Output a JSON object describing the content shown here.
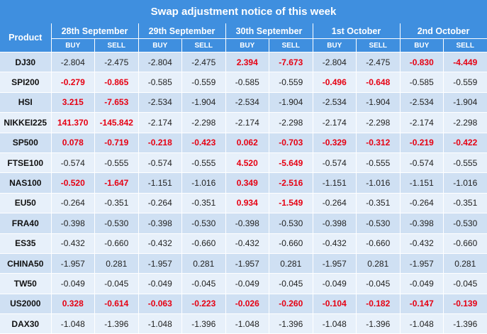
{
  "title": "Swap adjustment notice of this week",
  "header": {
    "product": "Product",
    "dates": [
      "28th  September",
      "29th  September",
      "30th  September",
      "1st  October",
      "2nd  October"
    ],
    "buy": "BUY",
    "sell": "SELL"
  },
  "colors": {
    "header_bg": "#3f8fdf",
    "row_odd": "#cfe0f3",
    "row_even": "#e7f0fa",
    "highlight": "#e60012"
  },
  "rows": [
    {
      "product": "DJ30",
      "cells": [
        {
          "v": "-2.804",
          "hl": false
        },
        {
          "v": "-2.475",
          "hl": false
        },
        {
          "v": "-2.804",
          "hl": false
        },
        {
          "v": "-2.475",
          "hl": false
        },
        {
          "v": "2.394",
          "hl": true
        },
        {
          "v": "-7.673",
          "hl": true
        },
        {
          "v": "-2.804",
          "hl": false
        },
        {
          "v": "-2.475",
          "hl": false
        },
        {
          "v": "-0.830",
          "hl": true
        },
        {
          "v": "-4.449",
          "hl": true
        }
      ]
    },
    {
      "product": "SPI200",
      "cells": [
        {
          "v": "-0.279",
          "hl": true
        },
        {
          "v": "-0.865",
          "hl": true
        },
        {
          "v": "-0.585",
          "hl": false
        },
        {
          "v": "-0.559",
          "hl": false
        },
        {
          "v": "-0.585",
          "hl": false
        },
        {
          "v": "-0.559",
          "hl": false
        },
        {
          "v": "-0.496",
          "hl": true
        },
        {
          "v": "-0.648",
          "hl": true
        },
        {
          "v": "-0.585",
          "hl": false
        },
        {
          "v": "-0.559",
          "hl": false
        }
      ]
    },
    {
      "product": "HSI",
      "cells": [
        {
          "v": "3.215",
          "hl": true
        },
        {
          "v": "-7.653",
          "hl": true
        },
        {
          "v": "-2.534",
          "hl": false
        },
        {
          "v": "-1.904",
          "hl": false
        },
        {
          "v": "-2.534",
          "hl": false
        },
        {
          "v": "-1.904",
          "hl": false
        },
        {
          "v": "-2.534",
          "hl": false
        },
        {
          "v": "-1.904",
          "hl": false
        },
        {
          "v": "-2.534",
          "hl": false
        },
        {
          "v": "-1.904",
          "hl": false
        }
      ]
    },
    {
      "product": "NIKKEI225",
      "cells": [
        {
          "v": "141.370",
          "hl": true
        },
        {
          "v": "-145.842",
          "hl": true
        },
        {
          "v": "-2.174",
          "hl": false
        },
        {
          "v": "-2.298",
          "hl": false
        },
        {
          "v": "-2.174",
          "hl": false
        },
        {
          "v": "-2.298",
          "hl": false
        },
        {
          "v": "-2.174",
          "hl": false
        },
        {
          "v": "-2.298",
          "hl": false
        },
        {
          "v": "-2.174",
          "hl": false
        },
        {
          "v": "-2.298",
          "hl": false
        }
      ]
    },
    {
      "product": "SP500",
      "cells": [
        {
          "v": "0.078",
          "hl": true
        },
        {
          "v": "-0.719",
          "hl": true
        },
        {
          "v": "-0.218",
          "hl": true
        },
        {
          "v": "-0.423",
          "hl": true
        },
        {
          "v": "0.062",
          "hl": true
        },
        {
          "v": "-0.703",
          "hl": true
        },
        {
          "v": "-0.329",
          "hl": true
        },
        {
          "v": "-0.312",
          "hl": true
        },
        {
          "v": "-0.219",
          "hl": true
        },
        {
          "v": "-0.422",
          "hl": true
        }
      ]
    },
    {
      "product": "FTSE100",
      "cells": [
        {
          "v": "-0.574",
          "hl": false
        },
        {
          "v": "-0.555",
          "hl": false
        },
        {
          "v": "-0.574",
          "hl": false
        },
        {
          "v": "-0.555",
          "hl": false
        },
        {
          "v": "4.520",
          "hl": true
        },
        {
          "v": "-5.649",
          "hl": true
        },
        {
          "v": "-0.574",
          "hl": false
        },
        {
          "v": "-0.555",
          "hl": false
        },
        {
          "v": "-0.574",
          "hl": false
        },
        {
          "v": "-0.555",
          "hl": false
        }
      ]
    },
    {
      "product": "NAS100",
      "cells": [
        {
          "v": "-0.520",
          "hl": true
        },
        {
          "v": "-1.647",
          "hl": true
        },
        {
          "v": "-1.151",
          "hl": false
        },
        {
          "v": "-1.016",
          "hl": false
        },
        {
          "v": "0.349",
          "hl": true
        },
        {
          "v": "-2.516",
          "hl": true
        },
        {
          "v": "-1.151",
          "hl": false
        },
        {
          "v": "-1.016",
          "hl": false
        },
        {
          "v": "-1.151",
          "hl": false
        },
        {
          "v": "-1.016",
          "hl": false
        }
      ]
    },
    {
      "product": "EU50",
      "cells": [
        {
          "v": "-0.264",
          "hl": false
        },
        {
          "v": "-0.351",
          "hl": false
        },
        {
          "v": "-0.264",
          "hl": false
        },
        {
          "v": "-0.351",
          "hl": false
        },
        {
          "v": "0.934",
          "hl": true
        },
        {
          "v": "-1.549",
          "hl": true
        },
        {
          "v": "-0.264",
          "hl": false
        },
        {
          "v": "-0.351",
          "hl": false
        },
        {
          "v": "-0.264",
          "hl": false
        },
        {
          "v": "-0.351",
          "hl": false
        }
      ]
    },
    {
      "product": "FRA40",
      "cells": [
        {
          "v": "-0.398",
          "hl": false
        },
        {
          "v": "-0.530",
          "hl": false
        },
        {
          "v": "-0.398",
          "hl": false
        },
        {
          "v": "-0.530",
          "hl": false
        },
        {
          "v": "-0.398",
          "hl": false
        },
        {
          "v": "-0.530",
          "hl": false
        },
        {
          "v": "-0.398",
          "hl": false
        },
        {
          "v": "-0.530",
          "hl": false
        },
        {
          "v": "-0.398",
          "hl": false
        },
        {
          "v": "-0.530",
          "hl": false
        }
      ]
    },
    {
      "product": "ES35",
      "cells": [
        {
          "v": "-0.432",
          "hl": false
        },
        {
          "v": "-0.660",
          "hl": false
        },
        {
          "v": "-0.432",
          "hl": false
        },
        {
          "v": "-0.660",
          "hl": false
        },
        {
          "v": "-0.432",
          "hl": false
        },
        {
          "v": "-0.660",
          "hl": false
        },
        {
          "v": "-0.432",
          "hl": false
        },
        {
          "v": "-0.660",
          "hl": false
        },
        {
          "v": "-0.432",
          "hl": false
        },
        {
          "v": "-0.660",
          "hl": false
        }
      ]
    },
    {
      "product": "CHINA50",
      "cells": [
        {
          "v": "-1.957",
          "hl": false
        },
        {
          "v": "0.281",
          "hl": false
        },
        {
          "v": "-1.957",
          "hl": false
        },
        {
          "v": "0.281",
          "hl": false
        },
        {
          "v": "-1.957",
          "hl": false
        },
        {
          "v": "0.281",
          "hl": false
        },
        {
          "v": "-1.957",
          "hl": false
        },
        {
          "v": "0.281",
          "hl": false
        },
        {
          "v": "-1.957",
          "hl": false
        },
        {
          "v": "0.281",
          "hl": false
        }
      ]
    },
    {
      "product": "TW50",
      "cells": [
        {
          "v": "-0.049",
          "hl": false
        },
        {
          "v": "-0.045",
          "hl": false
        },
        {
          "v": "-0.049",
          "hl": false
        },
        {
          "v": "-0.045",
          "hl": false
        },
        {
          "v": "-0.049",
          "hl": false
        },
        {
          "v": "-0.045",
          "hl": false
        },
        {
          "v": "-0.049",
          "hl": false
        },
        {
          "v": "-0.045",
          "hl": false
        },
        {
          "v": "-0.049",
          "hl": false
        },
        {
          "v": "-0.045",
          "hl": false
        }
      ]
    },
    {
      "product": "US2000",
      "cells": [
        {
          "v": "0.328",
          "hl": true
        },
        {
          "v": "-0.614",
          "hl": true
        },
        {
          "v": "-0.063",
          "hl": true
        },
        {
          "v": "-0.223",
          "hl": true
        },
        {
          "v": "-0.026",
          "hl": true
        },
        {
          "v": "-0.260",
          "hl": true
        },
        {
          "v": "-0.104",
          "hl": true
        },
        {
          "v": "-0.182",
          "hl": true
        },
        {
          "v": "-0.147",
          "hl": true
        },
        {
          "v": "-0.139",
          "hl": true
        }
      ]
    },
    {
      "product": "DAX30",
      "cells": [
        {
          "v": "-1.048",
          "hl": false
        },
        {
          "v": "-1.396",
          "hl": false
        },
        {
          "v": "-1.048",
          "hl": false
        },
        {
          "v": "-1.396",
          "hl": false
        },
        {
          "v": "-1.048",
          "hl": false
        },
        {
          "v": "-1.396",
          "hl": false
        },
        {
          "v": "-1.048",
          "hl": false
        },
        {
          "v": "-1.396",
          "hl": false
        },
        {
          "v": "-1.048",
          "hl": false
        },
        {
          "v": "-1.396",
          "hl": false
        }
      ]
    }
  ]
}
